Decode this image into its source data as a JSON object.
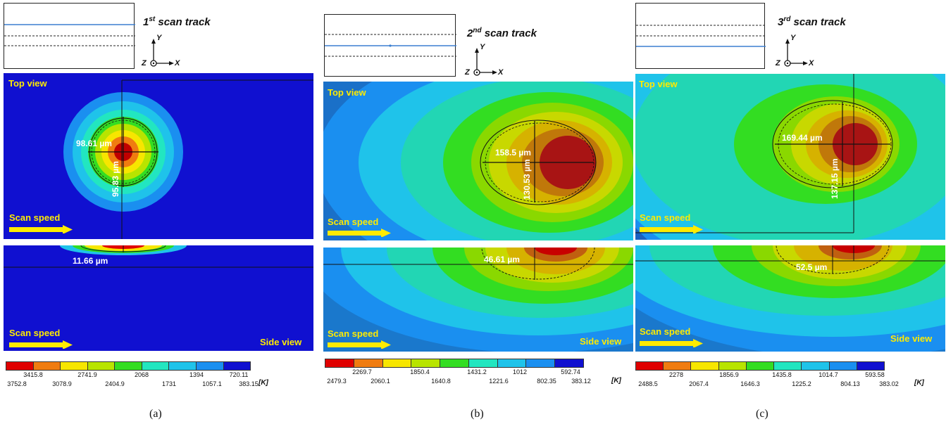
{
  "colors": [
    "#e00000",
    "#f07c10",
    "#f7e600",
    "#b8e400",
    "#33dd22",
    "#22e6c0",
    "#1fc3ea",
    "#1a8ff0",
    "#1010d0"
  ],
  "panels": [
    {
      "track_prefix": "1",
      "track_sup": "st",
      "track_suffix": " scan track",
      "axes": {
        "y": "Y",
        "x": "X",
        "z": "Z"
      },
      "top_view": "Top view",
      "scan_speed_top": "Scan speed",
      "dim_width": "98.61 µm",
      "dim_height": "95.83 µm",
      "dim_depth": "11.66 µm",
      "scan_speed_side": "Scan speed",
      "side_view": "Side view",
      "legend_upper": [
        "3415.8",
        "2741.9",
        "2068",
        "1394",
        "720.11"
      ],
      "legend_lower": [
        "3752.8",
        "3078.9",
        "2404.9",
        "1731",
        "1057.1",
        "383.15"
      ],
      "unit": "[K]",
      "caption": "(a)"
    },
    {
      "track_prefix": "2",
      "track_sup": "nd",
      "track_suffix": " scan track",
      "axes": {
        "y": "Y",
        "x": "X",
        "z": "Z"
      },
      "top_view": "Top view",
      "scan_speed_top": "Scan speed",
      "dim_width": "158.5 µm",
      "dim_height": "130.53 µm",
      "dim_depth": "46.61 µm",
      "scan_speed_side": "Scan speed",
      "side_view": "Side view",
      "legend_upper": [
        "2269.7",
        "1850.4",
        "1431.2",
        "1012",
        "592.74"
      ],
      "legend_lower": [
        "2479.3",
        "2060.1",
        "1640.8",
        "1221.6",
        "802.35",
        "383.12"
      ],
      "unit": "[K]",
      "caption": "(b)"
    },
    {
      "track_prefix": "3",
      "track_sup": "rd",
      "track_suffix": " scan track",
      "axes": {
        "y": "Y",
        "x": "X",
        "z": "Z"
      },
      "top_view": "Top view",
      "scan_speed_top": "Scan speed",
      "dim_width": "169.44 µm",
      "dim_height": "137.15 µm",
      "dim_depth": "52.5 µm",
      "scan_speed_side": "Scan speed",
      "side_view": "Side view",
      "legend_upper": [
        "2278",
        "1856.9",
        "1435.8",
        "1014.7",
        "593.58"
      ],
      "legend_lower": [
        "2488.5",
        "2067.4",
        "1646.3",
        "1225.2",
        "804.13",
        "383.02"
      ],
      "unit": "[K]",
      "caption": "(c)"
    }
  ]
}
